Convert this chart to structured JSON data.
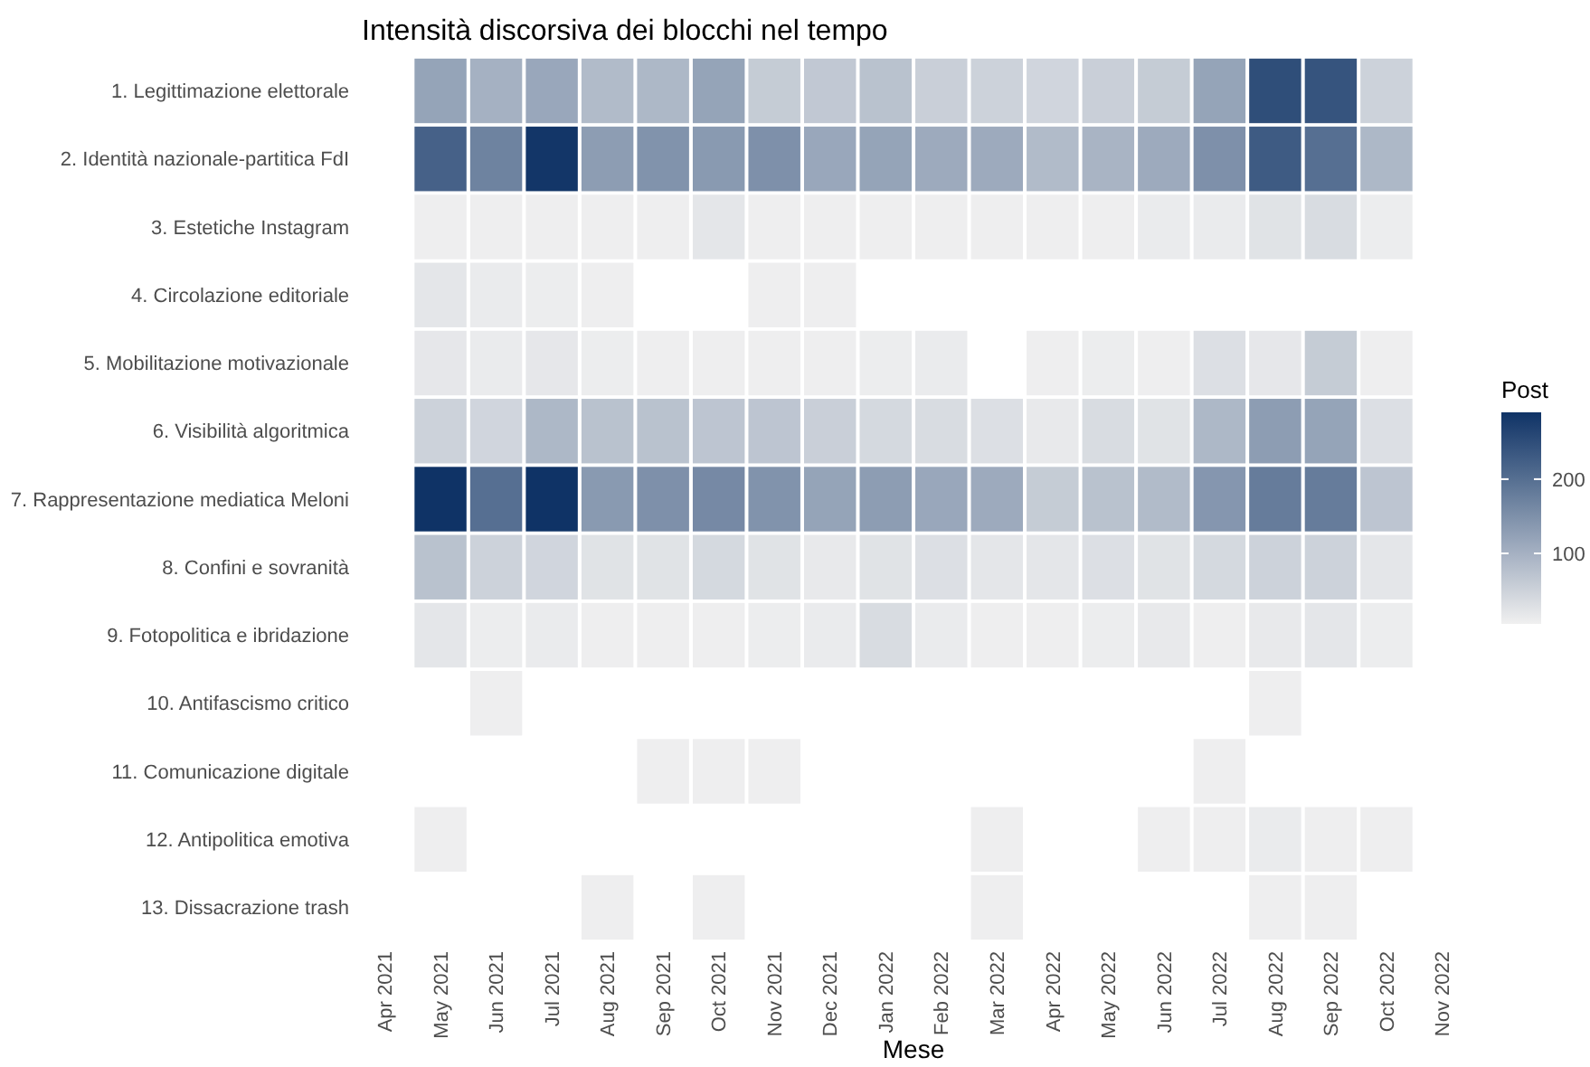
{
  "chart_data": {
    "type": "heatmap",
    "title": "Intensità discorsiva dei blocchi nel tempo",
    "xlabel": "Mese",
    "clabel": "Post",
    "categories": [
      "Apr 2021",
      "May 2021",
      "Jun 2021",
      "Jul 2021",
      "Aug 2021",
      "Sep 2021",
      "Oct 2021",
      "Nov 2021",
      "Dec 2021",
      "Jan 2022",
      "Feb 2022",
      "Mar 2022",
      "Apr 2022",
      "May 2022",
      "Jun 2022",
      "Jul 2022",
      "Aug 2022",
      "Sep 2022",
      "Oct 2022",
      "Nov 2022"
    ],
    "y_categories": [
      "1. Legittimazione elettorale",
      "2. Identità nazionale-partitica FdI",
      "3. Estetiche Instagram",
      "4. Circolazione editoriale",
      "5. Mobilitazione motivazionale",
      "6. Visibilità algoritmica",
      "7. Rappresentazione mediatica Meloni",
      "8. Confini e sovranità",
      "9. Fotopolitica e ibridazione",
      "10. Antifascismo critico",
      "11. Comunicazione digitale",
      "12. Antipolitica emotiva",
      "13. Dissacrazione trash"
    ],
    "cells": [
      [
        null,
        120,
        100,
        115,
        85,
        90,
        120,
        60,
        65,
        75,
        55,
        50,
        45,
        55,
        60,
        120,
        250,
        240,
        50,
        null
      ],
      [
        null,
        220,
        170,
        285,
        130,
        145,
        135,
        150,
        115,
        120,
        110,
        110,
        85,
        95,
        110,
        150,
        230,
        200,
        90,
        null
      ],
      [
        null,
        8,
        8,
        8,
        8,
        8,
        20,
        8,
        8,
        8,
        8,
        8,
        8,
        8,
        12,
        12,
        25,
        35,
        10,
        null
      ],
      [
        null,
        20,
        12,
        10,
        8,
        null,
        null,
        8,
        8,
        null,
        null,
        null,
        null,
        null,
        null,
        null,
        null,
        null,
        null,
        null
      ],
      [
        null,
        18,
        12,
        18,
        10,
        8,
        8,
        8,
        8,
        10,
        12,
        null,
        8,
        10,
        8,
        30,
        18,
        60,
        8,
        null
      ],
      [
        null,
        50,
        45,
        90,
        75,
        75,
        70,
        70,
        55,
        40,
        35,
        30,
        15,
        35,
        25,
        90,
        130,
        120,
        30,
        null
      ],
      [
        null,
        290,
        200,
        290,
        135,
        150,
        160,
        145,
        120,
        130,
        115,
        110,
        60,
        75,
        85,
        140,
        180,
        180,
        70,
        null
      ],
      [
        null,
        75,
        50,
        45,
        25,
        25,
        40,
        25,
        15,
        25,
        30,
        20,
        20,
        30,
        25,
        40,
        50,
        50,
        20,
        null
      ],
      [
        null,
        20,
        10,
        12,
        8,
        8,
        8,
        10,
        12,
        35,
        12,
        8,
        8,
        10,
        15,
        8,
        15,
        20,
        10,
        null
      ],
      [
        null,
        null,
        8,
        null,
        null,
        null,
        null,
        null,
        null,
        null,
        null,
        null,
        null,
        null,
        null,
        null,
        8,
        null,
        null,
        null
      ],
      [
        null,
        null,
        null,
        null,
        null,
        8,
        8,
        8,
        null,
        null,
        null,
        null,
        null,
        null,
        null,
        8,
        null,
        null,
        null,
        null
      ],
      [
        null,
        8,
        null,
        null,
        null,
        null,
        null,
        null,
        null,
        null,
        null,
        8,
        null,
        null,
        8,
        8,
        12,
        8,
        8,
        null
      ],
      [
        null,
        null,
        null,
        null,
        8,
        null,
        8,
        null,
        null,
        null,
        null,
        8,
        null,
        null,
        null,
        null,
        8,
        8,
        null,
        null
      ]
    ],
    "clim": [
      5,
      290
    ],
    "cticks": [
      100,
      200
    ],
    "colors": [
      "#f0f0f0",
      "#0f3366"
    ]
  }
}
